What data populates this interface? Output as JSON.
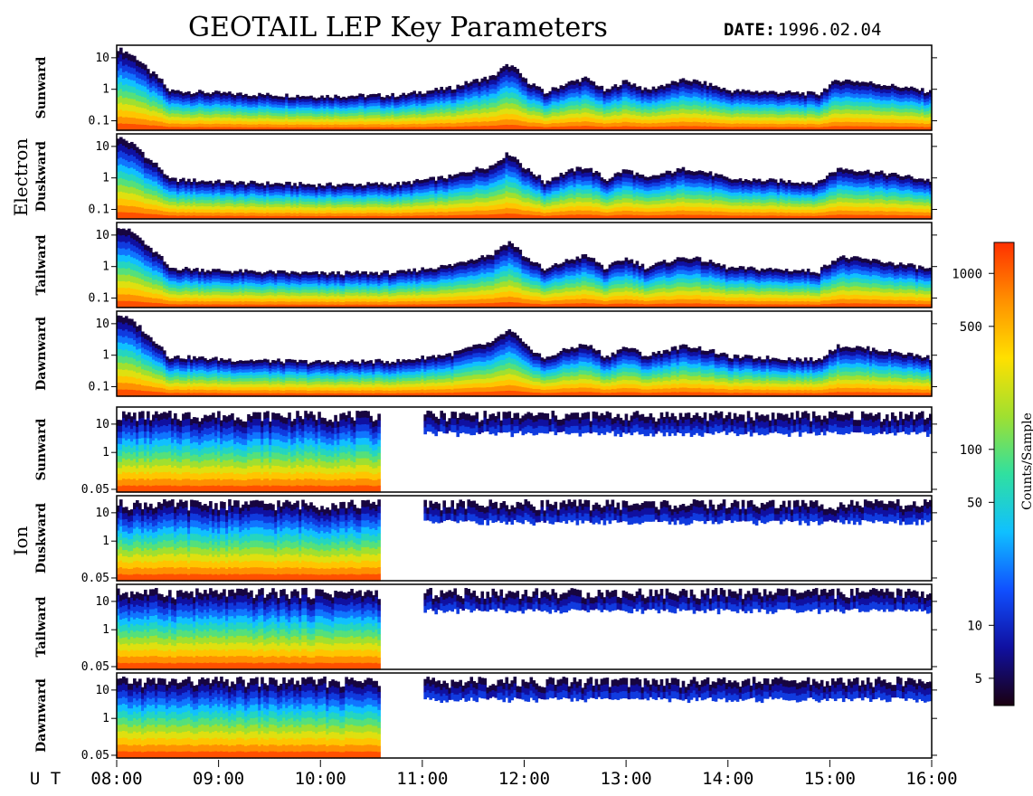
{
  "chart_data": {
    "type": "heatmap",
    "title": "GEOTAIL LEP Key Parameters",
    "date_label": "DATE:",
    "date_value": "1996.02.04",
    "x_axis": {
      "label": "U T",
      "range": [
        "08:00",
        "16:00"
      ],
      "tick_labels": [
        "08:00",
        "09:00",
        "10:00",
        "11:00",
        "12:00",
        "13:00",
        "14:00",
        "15:00",
        "16:00"
      ],
      "tick_hours": [
        8,
        9,
        10,
        11,
        12,
        13,
        14,
        15,
        16
      ]
    },
    "colorbar": {
      "label": "Counts/Sample",
      "scale": "log",
      "range": [
        3.5,
        1500
      ],
      "tick_labels": [
        "1000",
        "500",
        "100",
        "50",
        "10",
        "5"
      ],
      "tick_values": [
        1000,
        500,
        100,
        50,
        10,
        5
      ],
      "colormap": [
        "#1a0010",
        "#1010a0",
        "#1050ff",
        "#10c0ff",
        "#30e0a0",
        "#a0e030",
        "#ffe000",
        "#ff9000",
        "#ff3000"
      ]
    },
    "groups": [
      {
        "name": "Electron",
        "y_scale": "log",
        "y_range": [
          0.05,
          25
        ],
        "y_tick_labels": [
          "10",
          "1",
          "0.1"
        ],
        "y_tick_values": [
          10,
          1,
          0.1
        ],
        "panels": [
          {
            "name": "Sunward"
          },
          {
            "name": "Duskward"
          },
          {
            "name": "Tailward"
          },
          {
            "name": "Dawnward"
          }
        ],
        "spectrum_upper_edge_keV": {
          "ut_hours": [
            8.0,
            8.3,
            8.5,
            9.0,
            9.2,
            10.0,
            10.8,
            11.3,
            11.7,
            11.85,
            12.0,
            12.2,
            12.6,
            12.8,
            13.0,
            13.2,
            13.6,
            14.0,
            14.5,
            14.9,
            15.1,
            15.6,
            16.0
          ],
          "values": [
            20,
            4,
            0.9,
            0.75,
            0.7,
            0.6,
            0.65,
            1.1,
            2.5,
            6.0,
            2.0,
            0.7,
            2.2,
            0.8,
            1.8,
            0.9,
            2.0,
            0.9,
            0.8,
            0.7,
            2.0,
            1.3,
            0.8
          ]
        }
      },
      {
        "name": "Ion",
        "y_scale": "log",
        "y_range": [
          0.04,
          40
        ],
        "y_tick_labels": [
          "10",
          "1",
          "0.05"
        ],
        "y_tick_values": [
          10,
          1,
          0.05
        ],
        "panels": [
          {
            "name": "Sunward"
          },
          {
            "name": "Duskward"
          },
          {
            "name": "Tailward"
          },
          {
            "name": "Dawnward"
          }
        ],
        "data_gap_ut_hours": [
          [
            10.58,
            11.0
          ]
        ]
      }
    ]
  }
}
